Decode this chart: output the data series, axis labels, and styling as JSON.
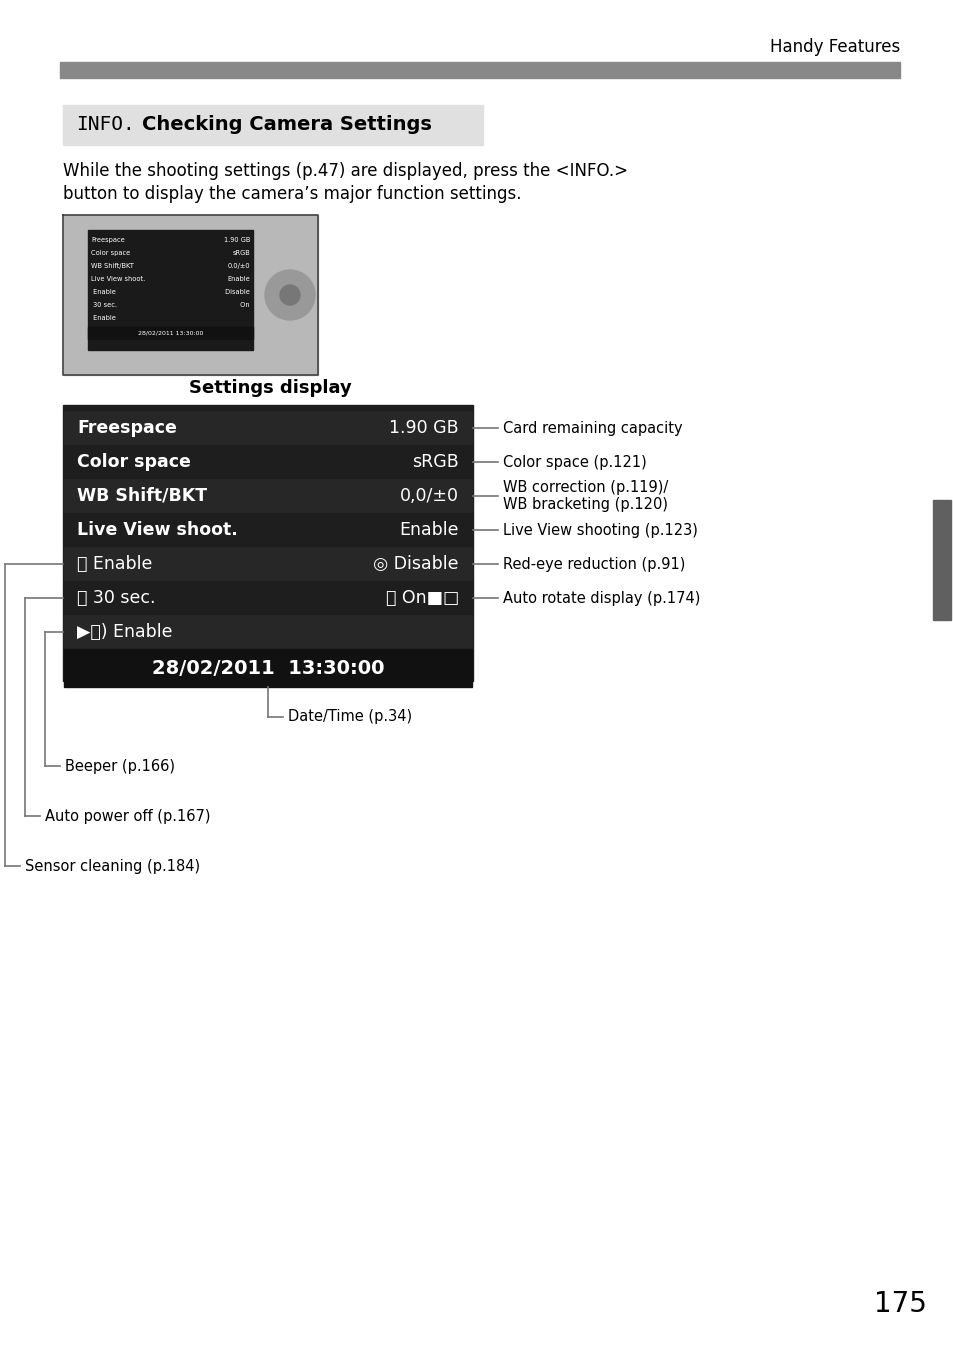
{
  "page_header": "Handy Features",
  "header_bar_color": "#888888",
  "title_bg_color": "#e0e0e0",
  "title_info": "INFO.",
  "title_bold": "Checking Camera Settings",
  "body_text_1": "While the shooting settings (p.47) are displayed, press the <INFO.>",
  "body_text_2": "button to display the camera’s major function settings.",
  "settings_display_label": "Settings display",
  "display_rows": [
    {
      "left": "Freespace",
      "right": "1.90 GB"
    },
    {
      "left": "Color space",
      "right": "sRGB"
    },
    {
      "left": "WB Shift/BKT",
      "right": "0,0/±0"
    },
    {
      "left": "Live View shoot.",
      "right": "Enable"
    },
    {
      "left": "⬜ Enable",
      "right": "◎ Disable"
    },
    {
      "left": "⏰ 30 sec.",
      "right": "⏰ On■□"
    },
    {
      "left": "▶⧖) Enable",
      "right": ""
    }
  ],
  "display_date": "28/02/2011  13:30:00",
  "right_annotations": [
    "Card remaining capacity",
    "Color space (p.121)",
    "WB correction (p.119)/\nWB bracketing (p.120)",
    "Live View shooting (p.123)",
    "Red-eye reduction (p.91)",
    "Auto rotate display (p.174)"
  ],
  "left_annotations": [
    "Date/Time (p.34)",
    "Beeper (p.166)",
    "Auto power off (p.167)",
    "Sensor cleaning (p.184)"
  ],
  "page_number": "175",
  "sidebar_color": "#606060"
}
